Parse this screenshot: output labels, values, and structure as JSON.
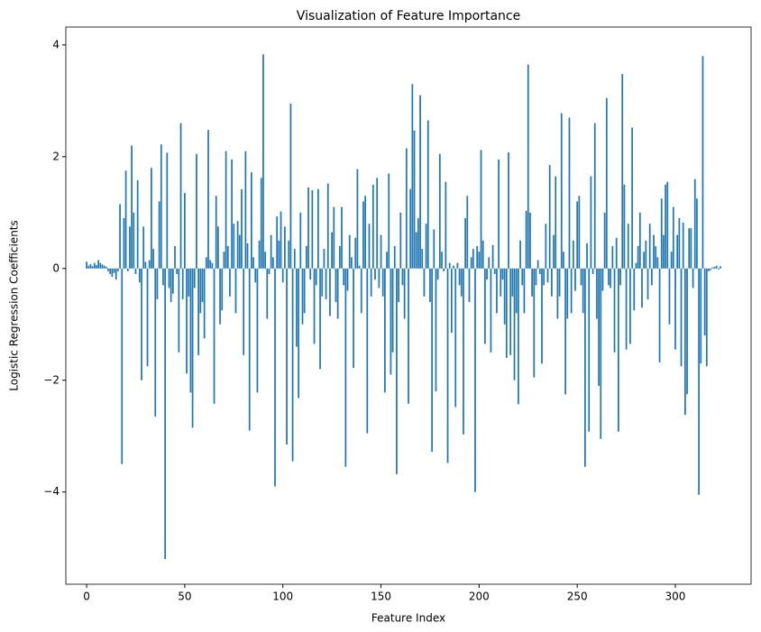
{
  "chart_data": {
    "type": "bar",
    "title": "Visualization of Feature Importance",
    "x_label": "Feature Index",
    "y_label": "Logistic Regression Coefficients",
    "color": "#1f77b4",
    "xlim": [
      -10.6,
      338.6
    ],
    "xticks": [
      0,
      50,
      100,
      150,
      200,
      250,
      300
    ],
    "ylim": [
      -5.65,
      4.32
    ],
    "yticks": [
      {
        "value": -4,
        "label": "−4"
      },
      {
        "value": -2,
        "label": "−2"
      },
      0,
      2,
      4
    ],
    "x": [
      0,
      1,
      2,
      3,
      4,
      5,
      6,
      7,
      8,
      9,
      10,
      11,
      12,
      13,
      14,
      15,
      16,
      17,
      18,
      19,
      20,
      21,
      22,
      23,
      24,
      25,
      26,
      27,
      28,
      29,
      30,
      31,
      32,
      33,
      34,
      35,
      36,
      37,
      38,
      39,
      40,
      41,
      42,
      43,
      44,
      45,
      46,
      47,
      48,
      49,
      50,
      51,
      52,
      53,
      54,
      55,
      56,
      57,
      58,
      59,
      60,
      61,
      62,
      63,
      64,
      65,
      66,
      67,
      68,
      69,
      70,
      71,
      72,
      73,
      74,
      75,
      76,
      77,
      78,
      79,
      80,
      81,
      82,
      83,
      84,
      85,
      86,
      87,
      88,
      89,
      90,
      91,
      92,
      93,
      94,
      95,
      96,
      97,
      98,
      99,
      100,
      101,
      102,
      103,
      104,
      105,
      106,
      107,
      108,
      109,
      110,
      111,
      112,
      113,
      114,
      115,
      116,
      117,
      118,
      119,
      120,
      121,
      122,
      123,
      124,
      125,
      126,
      127,
      128,
      129,
      130,
      131,
      132,
      133,
      134,
      135,
      136,
      137,
      138,
      139,
      140,
      141,
      142,
      143,
      144,
      145,
      146,
      147,
      148,
      149,
      150,
      151,
      152,
      153,
      154,
      155,
      156,
      157,
      158,
      159,
      160,
      161,
      162,
      163,
      164,
      165,
      166,
      167,
      168,
      169,
      170,
      171,
      172,
      173,
      174,
      175,
      176,
      177,
      178,
      179,
      180,
      181,
      182,
      183,
      184,
      185,
      186,
      187,
      188,
      189,
      190,
      191,
      192,
      193,
      194,
      195,
      196,
      197,
      198,
      199,
      200,
      201,
      202,
      203,
      204,
      205,
      206,
      207,
      208,
      209,
      210,
      211,
      212,
      213,
      214,
      215,
      216,
      217,
      218,
      219,
      220,
      221,
      222,
      223,
      224,
      225,
      226,
      227,
      228,
      229,
      230,
      231,
      232,
      233,
      234,
      235,
      236,
      237,
      238,
      239,
      240,
      241,
      242,
      243,
      244,
      245,
      246,
      247,
      248,
      249,
      250,
      251,
      252,
      253,
      254,
      255,
      256,
      257,
      258,
      259,
      260,
      261,
      262,
      263,
      264,
      265,
      266,
      267,
      268,
      269,
      270,
      271,
      272,
      273,
      274,
      275,
      276,
      277,
      278,
      279,
      280,
      281,
      282,
      283,
      284,
      285,
      286,
      287,
      288,
      289,
      290,
      291,
      292,
      293,
      294,
      295,
      296,
      297,
      298,
      299,
      300,
      301,
      302,
      303,
      304,
      305,
      306,
      307,
      308,
      309,
      310,
      311,
      312,
      313,
      314,
      315,
      316,
      317,
      318,
      319,
      320,
      321,
      322,
      323
    ],
    "values": [
      0.12,
      0.05,
      0.08,
      0.04,
      0.1,
      0.06,
      0.15,
      0.1,
      0.07,
      0.05,
      0.03,
      -0.05,
      -0.1,
      -0.15,
      -0.08,
      -0.2,
      -0.05,
      1.15,
      -3.5,
      0.9,
      1.75,
      -0.05,
      0.75,
      2.2,
      1.0,
      -0.1,
      1.58,
      -0.25,
      -2.0,
      0.75,
      0.12,
      -1.75,
      0.15,
      1.8,
      0.35,
      -2.65,
      -0.55,
      1.2,
      2.22,
      -0.3,
      -5.2,
      2.07,
      -0.35,
      -0.6,
      -0.45,
      0.4,
      -0.1,
      -1.5,
      2.6,
      -0.55,
      1.35,
      -1.88,
      -0.5,
      -2.22,
      -2.85,
      -0.35,
      2.05,
      -1.55,
      -0.8,
      -0.6,
      -1.25,
      0.2,
      2.48,
      0.15,
      0.1,
      -2.42,
      1.3,
      0.75,
      -1.0,
      -0.75,
      0.3,
      2.1,
      0.4,
      -0.5,
      1.95,
      0.8,
      -0.8,
      0.85,
      0.6,
      1.42,
      -1.55,
      2.1,
      0.45,
      -2.9,
      1.72,
      0.2,
      -0.25,
      -2.22,
      0.5,
      1.62,
      3.83,
      0.3,
      -0.9,
      -0.1,
      0.6,
      0.2,
      -3.9,
      0.93,
      0.5,
      1.02,
      -0.25,
      0.75,
      -3.15,
      0.5,
      2.95,
      -3.45,
      0.35,
      -1.4,
      -2.32,
      1.0,
      -1.0,
      -0.8,
      0.4,
      1.45,
      -0.2,
      1.4,
      -1.35,
      -0.3,
      1.42,
      -1.8,
      -0.5,
      0.35,
      -0.55,
      1.52,
      -0.85,
      0.65,
      1.1,
      -0.6,
      -0.9,
      0.4,
      1.1,
      -0.3,
      -3.55,
      -0.4,
      0.6,
      0.2,
      -1.78,
      0.55,
      1.78,
      0.05,
      -0.8,
      1.2,
      1.3,
      -2.95,
      0.8,
      -0.5,
      1.5,
      -0.2,
      1.62,
      -0.35,
      0.6,
      -0.5,
      -2.22,
      0.3,
      1.7,
      -1.9,
      -1.5,
      0.4,
      -3.68,
      -0.6,
      1.0,
      -0.3,
      -0.9,
      2.15,
      -2.42,
      1.42,
      3.3,
      2.47,
      0.65,
      0.9,
      3.1,
      0.35,
      -0.5,
      0.8,
      2.65,
      -0.6,
      -3.28,
      0.7,
      -2.2,
      -0.2,
      2.05,
      0.3,
      -0.05,
      1.55,
      -3.48,
      0.1,
      -1.15,
      0.05,
      -2.48,
      0.1,
      -0.3,
      -0.5,
      -2.97,
      0.9,
      1.3,
      -0.6,
      0.2,
      0.35,
      -4.0,
      0.4,
      0.3,
      2.12,
      0.5,
      -1.35,
      -0.2,
      0.2,
      -1.5,
      0.42,
      -0.1,
      -0.8,
      1.95,
      -0.5,
      -0.2,
      -1.0,
      -1.6,
      2.08,
      -1.55,
      -0.5,
      -2.0,
      -0.8,
      -2.43,
      0.5,
      -0.3,
      -0.8,
      1.03,
      3.65,
      1.0,
      -0.5,
      -1.95,
      -0.3,
      0.15,
      -0.1,
      -1.7,
      -0.3,
      0.8,
      -0.25,
      1.85,
      -0.5,
      0.6,
      1.65,
      -0.9,
      -0.5,
      2.78,
      0.3,
      -2.25,
      -0.9,
      2.7,
      -0.8,
      0.5,
      -0.4,
      1.2,
      1.3,
      -0.3,
      -0.8,
      -3.55,
      0.45,
      -2.92,
      1.65,
      -0.1,
      2.6,
      -0.9,
      -2.1,
      -3.05,
      -0.4,
      1.0,
      3.05,
      -0.3,
      -0.35,
      0.4,
      -1.5,
      0.55,
      -2.92,
      -0.3,
      3.48,
      1.5,
      -1.45,
      0.8,
      -1.35,
      2.52,
      -0.75,
      0.1,
      0.4,
      1.0,
      -0.7,
      0.3,
      0.5,
      -0.55,
      0.8,
      -0.3,
      0.6,
      0.4,
      0.2,
      -1.68,
      1.25,
      0.6,
      1.5,
      1.55,
      -1.0,
      0.3,
      1.1,
      -1.45,
      0.6,
      0.9,
      -1.75,
      0.82,
      -2.62,
      -2.25,
      0.72,
      0.72,
      -0.35,
      1.6,
      1.25,
      -4.05,
      -1.7,
      3.8,
      -1.2,
      -1.75,
      -0.05,
      -0.03,
      0.02,
      0.03,
      0.05,
      -0.02,
      0.04
    ]
  }
}
